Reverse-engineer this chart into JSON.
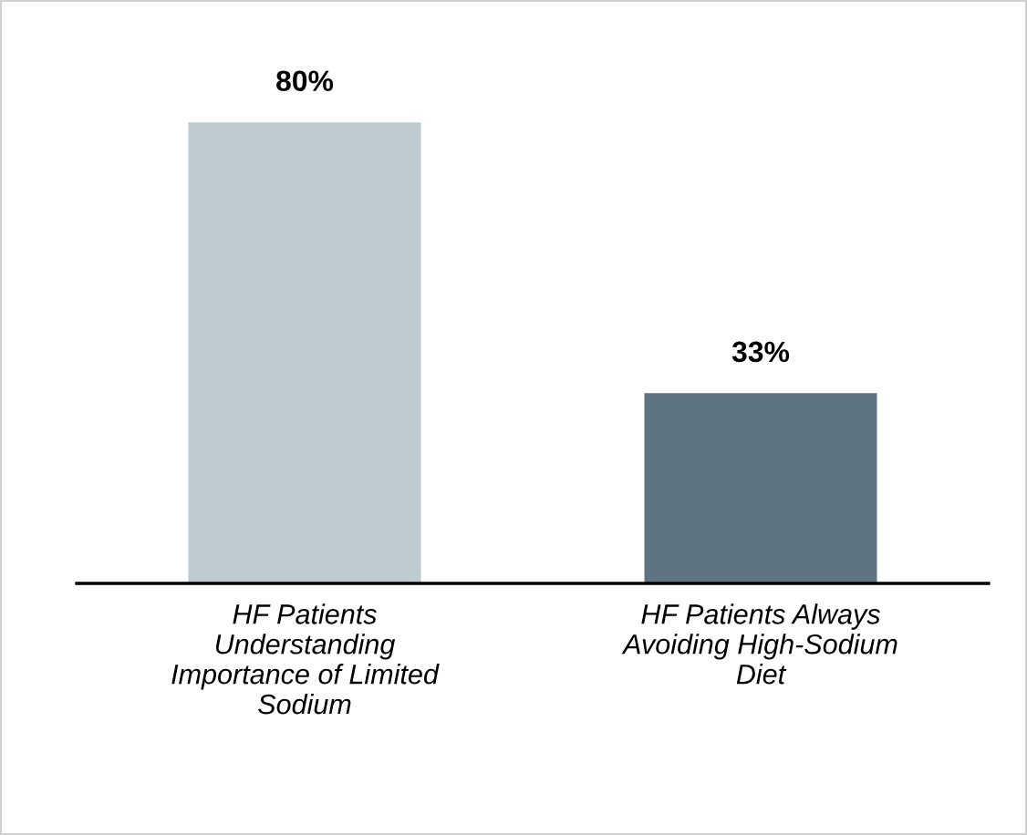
{
  "chart_data": {
    "type": "bar",
    "categories": [
      "HF Patients\nUnderstanding\nImportance of Limited\nSodium",
      "HF Patients Always\nAvoiding High-Sodium\nDiet"
    ],
    "values": [
      80,
      33
    ],
    "colors": [
      "#c0cbd1",
      "#5f7482"
    ],
    "value_labels": [
      "80%",
      "33%"
    ],
    "grid": false,
    "legend": false
  }
}
